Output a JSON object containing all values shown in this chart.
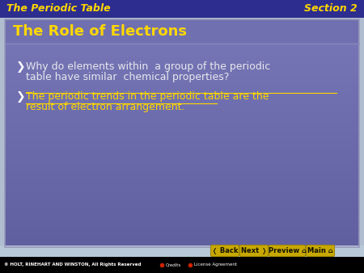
{
  "header_bg": "#2d2d8f",
  "header_left": "The Periodic Table",
  "header_right": "Section 2",
  "header_text_color": "#FFD700",
  "header_font_size": 9,
  "content_bg_top": "#7878b8",
  "content_bg_bottom": "#6060a0",
  "content_border_color": "#aaaacc",
  "outer_bg": "#b0bdd0",
  "slide_title": "The Role of Electrons",
  "slide_title_color": "#FFD700",
  "slide_title_font_size": 13,
  "bullet_symbol": "❯",
  "bullet_color": "#ffffff",
  "bullet1_line1": "Why do elements within  a group of the periodic",
  "bullet1_line2": "table have similar  chemical properties?",
  "bullet1_color": "#e8e8ee",
  "bullet2_line1": "The periodic trends in the periodic table are the",
  "bullet2_line2": "result of electron arrangement.",
  "bullet2_color": "#FFD700",
  "bullet_font_size": 9,
  "footer_bg": "#000000",
  "footer_text": "© HOLT, RINEHART AND WINSTON, All Rights Reserved",
  "footer_text_color": "#ffffff",
  "footer_credits": "Credits",
  "footer_license": "License Agreement",
  "button_text_color": "#111100",
  "button_bg": "#c8a800",
  "button_border": "#a08800",
  "buttons": [
    "❬ Back",
    "Next ❭",
    "Preview ⌂",
    "Main ⌂"
  ],
  "button_font_size": 6,
  "nav_bg": "#b8c8d8"
}
